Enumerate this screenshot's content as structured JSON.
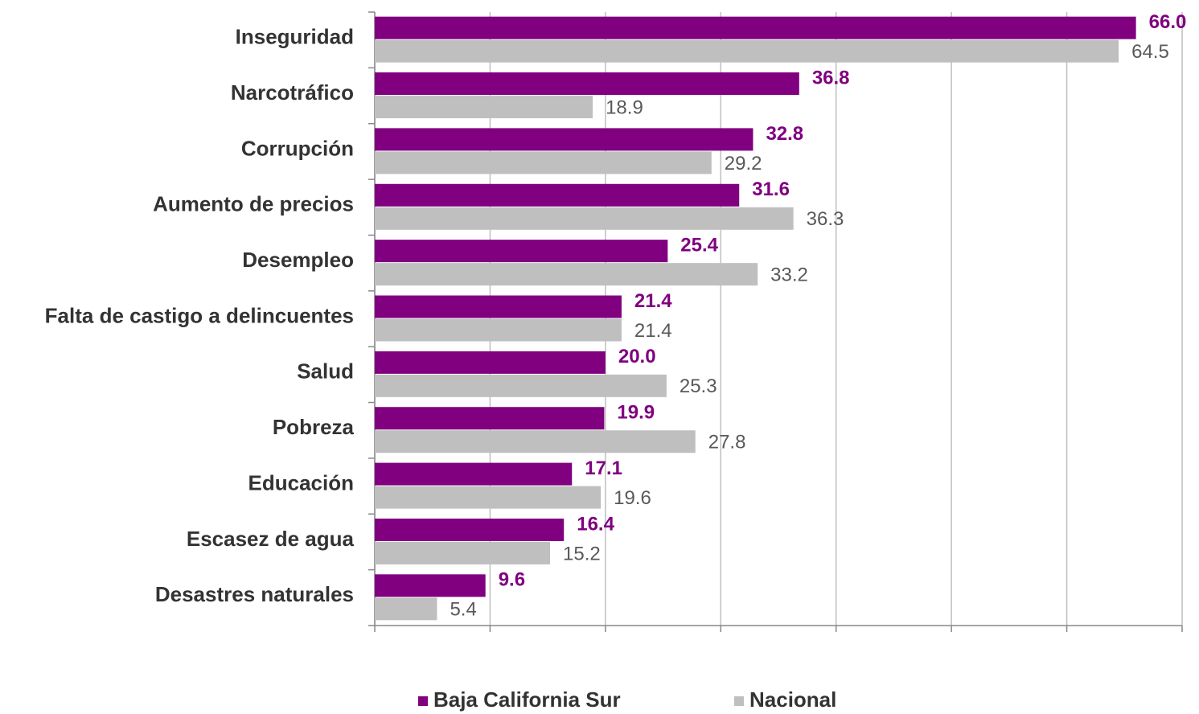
{
  "chart_data": {
    "type": "bar",
    "orientation": "horizontal",
    "categories": [
      "Inseguridad",
      "Narcotráfico",
      "Corrupción",
      "Aumento de precios",
      "Desempleo",
      "Falta de castigo a delincuentes",
      "Salud",
      "Pobreza",
      "Educación",
      "Escasez de agua",
      "Desastres naturales"
    ],
    "series": [
      {
        "name": "Baja California Sur",
        "color": "#800080",
        "values": [
          66.0,
          36.8,
          32.8,
          31.6,
          25.4,
          21.4,
          20.0,
          19.9,
          17.1,
          16.4,
          9.6
        ],
        "value_labels": [
          "66.0",
          "36.8",
          "32.8",
          "31.6",
          "25.4",
          "21.4",
          "20.0",
          "19.9",
          "17.1",
          "16.4",
          "9.6"
        ]
      },
      {
        "name": "Nacional",
        "color": "#bfbfbf",
        "values": [
          64.5,
          18.9,
          29.2,
          36.3,
          33.2,
          21.4,
          25.3,
          27.8,
          19.6,
          15.2,
          5.4
        ],
        "value_labels": [
          "64.5",
          "18.9",
          "29.2",
          "36.3",
          "33.2",
          "21.4",
          "25.3",
          "27.8",
          "19.6",
          "15.2",
          "5.4"
        ]
      }
    ],
    "xlim": [
      0,
      70
    ],
    "xticks": [
      0,
      10,
      20,
      30,
      40,
      50,
      60,
      70
    ],
    "grid": true,
    "legend": "bottom"
  }
}
